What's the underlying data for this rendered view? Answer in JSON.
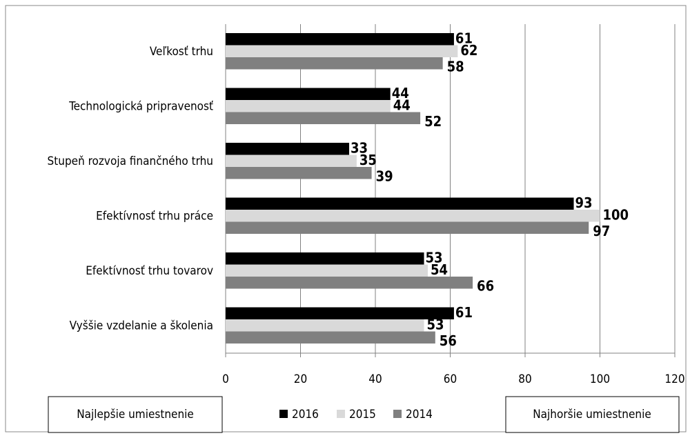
{
  "chart_data": {
    "type": "hbar",
    "categories": [
      "Veľkosť trhu",
      "Technologická pripravenosť",
      "Stupeň rozvoja finančného trhu",
      "Efektívnosť trhu práce",
      "Efektívnosť trhu tovarov",
      "Vyššie vzdelanie a školenia"
    ],
    "series": [
      {
        "name": "2016",
        "color": "#000000",
        "values": [
          61,
          44,
          33,
          93,
          53,
          61
        ]
      },
      {
        "name": "2015",
        "color": "#d9d9d9",
        "values": [
          62,
          44,
          35,
          100,
          54,
          53
        ]
      },
      {
        "name": "2014",
        "color": "#808080",
        "values": [
          58,
          52,
          39,
          97,
          66,
          56
        ]
      }
    ],
    "xlim": [
      0,
      120
    ],
    "xticks": [
      0,
      20,
      40,
      60,
      80,
      100,
      120
    ],
    "grid": true,
    "annotations": [
      "Najlepšie umiestnenie",
      "Najhoršie umiestnenie"
    ]
  }
}
